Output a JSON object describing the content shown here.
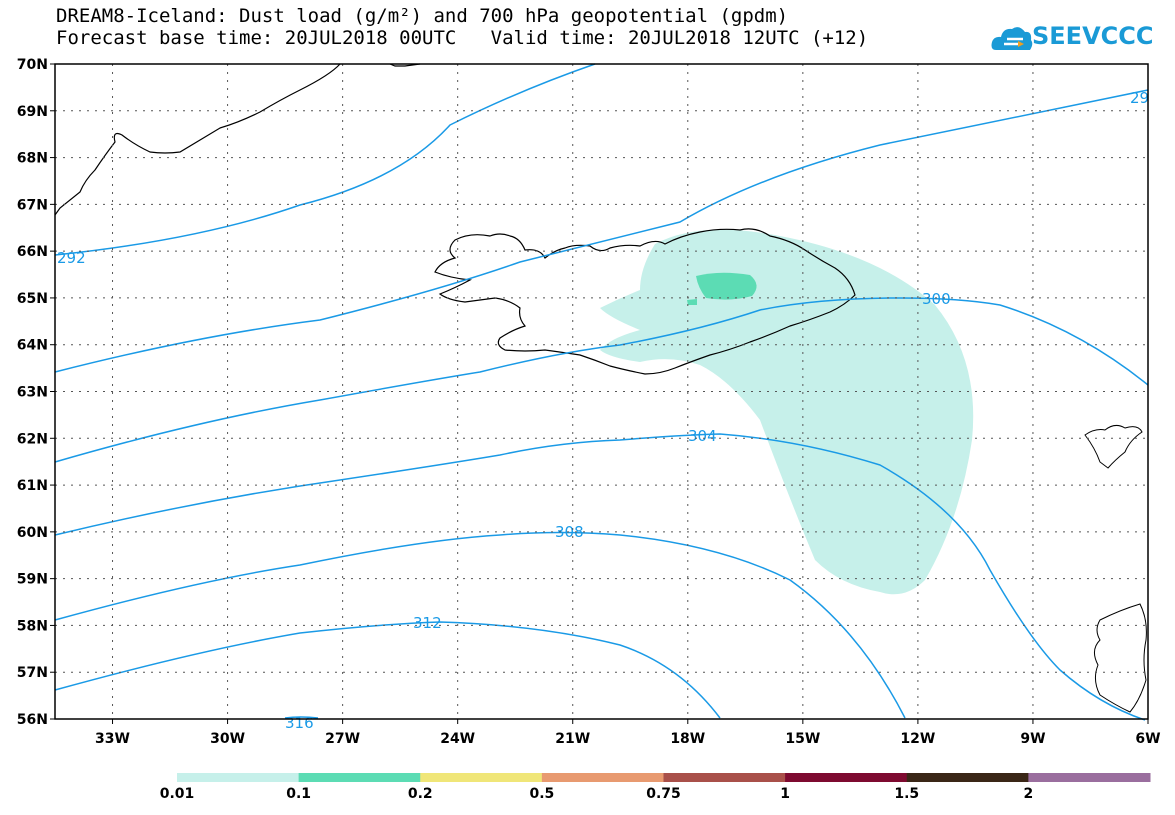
{
  "title_line1": "DREAM8-Iceland: Dust load (g/m²) and 700 hPa geopotential (gpdm)",
  "title_line2": "Forecast base time: 20JUL2018 00UTC   Valid time: 20JUL2018 12UTC (+12)",
  "logo": {
    "text": "SEEVCCC",
    "icon": "cloud-logo-icon",
    "color": "#1a9ad6"
  },
  "map": {
    "lat_labels": [
      "70N",
      "69N",
      "68N",
      "67N",
      "66N",
      "65N",
      "64N",
      "63N",
      "62N",
      "61N",
      "60N",
      "59N",
      "58N",
      "57N",
      "56N"
    ],
    "lon_labels": [
      "33W",
      "30W",
      "27W",
      "24W",
      "21W",
      "18W",
      "15W",
      "12W",
      "9W",
      "6W"
    ],
    "lat_range": [
      56,
      70
    ],
    "lon_range": [
      -34.5,
      -6
    ],
    "contour_color": "#1a9ae6",
    "contour_labels": [
      "292",
      "300",
      "304",
      "308",
      "312",
      "316",
      "29"
    ]
  },
  "colorbar": {
    "thresholds": [
      "0.01",
      "0.1",
      "0.2",
      "0.5",
      "0.75",
      "1",
      "1.5",
      "2"
    ],
    "colors": [
      "#c6f0ea",
      "#5cdcb4",
      "#f0e678",
      "#e89a70",
      "#a9504a",
      "#7e0a30",
      "#3a2616",
      "#9a6e9e"
    ]
  }
}
